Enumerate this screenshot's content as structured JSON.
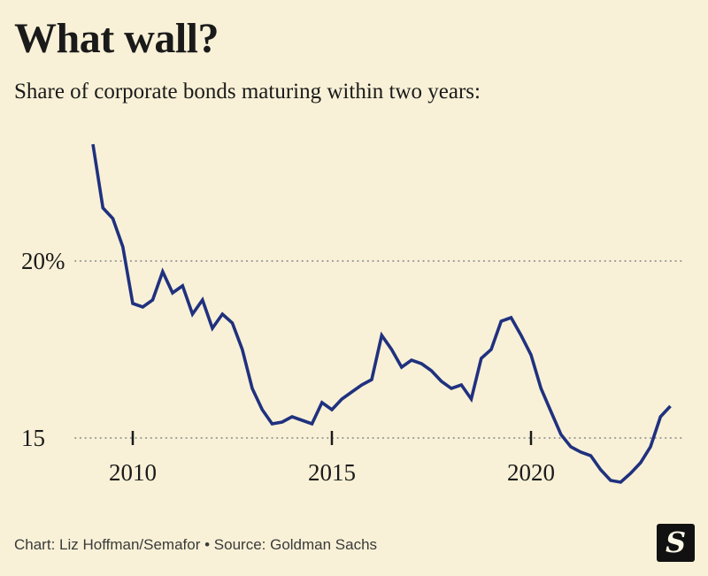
{
  "header": {
    "title": "What wall?",
    "subtitle": "Share of corporate bonds maturing within two years:"
  },
  "footer": {
    "credit": "Chart: Liz Hoffman/Semafor • Source: Goldman Sachs",
    "logo_letter": "S"
  },
  "colors": {
    "background": "#f8f1d7",
    "text": "#1a1a1a",
    "grid": "#8f8f8f",
    "footer_text": "#3a3a3a",
    "logo_bg": "#111111",
    "logo_fg": "#fdf8e7",
    "line": "#20317f"
  },
  "chart_data": {
    "type": "line",
    "title": "What wall?",
    "subtitle": "Share of corporate bonds maturing within two years:",
    "unit": "percent",
    "legend": "none",
    "grid": "horizontal dotted lines at y ticks only",
    "line_color": "#20317f",
    "xlim": [
      2009,
      2023.5
    ],
    "ylim": [
      13.375,
      23.625
    ],
    "yticks": [
      {
        "value": 20,
        "label": "20%"
      },
      {
        "value": 15,
        "label": "15"
      }
    ],
    "xticks": [
      {
        "value": 2010,
        "label": "2010"
      },
      {
        "value": 2015,
        "label": "2015"
      },
      {
        "value": 2020,
        "label": "2020"
      }
    ],
    "series": [
      {
        "name": "Share of corporate bonds maturing within two years (%)",
        "x": [
          2009,
          2009.25,
          2009.5,
          2009.75,
          2010,
          2010.25,
          2010.5,
          2010.75,
          2011,
          2011.25,
          2011.5,
          2011.75,
          2012,
          2012.25,
          2012.5,
          2012.75,
          2013,
          2013.25,
          2013.5,
          2013.75,
          2014,
          2014.25,
          2014.5,
          2014.75,
          2015,
          2015.25,
          2015.5,
          2015.75,
          2016,
          2016.25,
          2016.5,
          2016.75,
          2017,
          2017.25,
          2017.5,
          2017.75,
          2018,
          2018.25,
          2018.5,
          2018.75,
          2019,
          2019.25,
          2019.5,
          2019.75,
          2020,
          2020.25,
          2020.5,
          2020.75,
          2021,
          2021.25,
          2021.5,
          2021.75,
          2022,
          2022.25,
          2022.5,
          2022.75,
          2023,
          2023.25,
          2023.5
        ],
        "values": [
          23.3,
          21.5,
          21.2,
          20.4,
          18.8,
          18.7,
          18.9,
          19.7,
          19.1,
          19.3,
          18.5,
          18.9,
          18.1,
          18.5,
          18.25,
          17.5,
          16.4,
          15.8,
          15.4,
          15.45,
          15.6,
          15.5,
          15.4,
          16.0,
          15.8,
          16.1,
          16.3,
          16.5,
          16.65,
          17.9,
          17.5,
          17.0,
          17.2,
          17.1,
          16.9,
          16.6,
          16.4,
          16.5,
          16.1,
          17.25,
          17.5,
          18.3,
          18.4,
          17.9,
          17.35,
          16.4,
          15.75,
          15.1,
          14.75,
          14.6,
          14.5,
          14.1,
          13.8,
          13.75,
          14.0,
          14.3,
          14.75,
          15.6,
          15.9
        ]
      }
    ]
  }
}
